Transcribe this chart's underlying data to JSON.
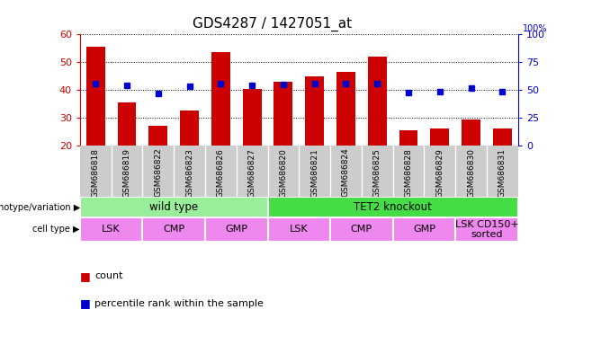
{
  "title": "GDS4287 / 1427051_at",
  "samples": [
    "GSM686818",
    "GSM686819",
    "GSM686822",
    "GSM686823",
    "GSM686826",
    "GSM686827",
    "GSM686820",
    "GSM686821",
    "GSM686824",
    "GSM686825",
    "GSM686828",
    "GSM686829",
    "GSM686830",
    "GSM686831"
  ],
  "counts": [
    55.5,
    35.5,
    27.0,
    32.5,
    53.5,
    40.5,
    43.0,
    45.0,
    46.5,
    52.0,
    25.5,
    26.0,
    29.5,
    26.0
  ],
  "percentile_ranks": [
    56.0,
    54.5,
    47.0,
    53.0,
    56.0,
    54.5,
    55.0,
    55.5,
    55.5,
    56.0,
    48.0,
    48.5,
    51.5,
    48.5
  ],
  "ylim_left": [
    20,
    60
  ],
  "ylim_right": [
    0,
    100
  ],
  "yticks_left": [
    20,
    30,
    40,
    50,
    60
  ],
  "yticks_right": [
    0,
    25,
    50,
    75,
    100
  ],
  "bar_color": "#cc0000",
  "dot_color": "#0000cc",
  "bar_bottom": 20,
  "genotype_groups": [
    {
      "label": "wild type",
      "start": 0,
      "end": 6,
      "color": "#99ee99"
    },
    {
      "label": "TET2 knockout",
      "start": 6,
      "end": 14,
      "color": "#44dd44"
    }
  ],
  "cell_type_groups": [
    {
      "label": "LSK",
      "start": 0,
      "end": 2
    },
    {
      "label": "CMP",
      "start": 2,
      "end": 4
    },
    {
      "label": "GMP",
      "start": 4,
      "end": 6
    },
    {
      "label": "LSK",
      "start": 6,
      "end": 8
    },
    {
      "label": "CMP",
      "start": 8,
      "end": 10
    },
    {
      "label": "GMP",
      "start": 10,
      "end": 12
    },
    {
      "label": "LSK CD150+\nsorted",
      "start": 12,
      "end": 14
    }
  ],
  "cell_type_color": "#ee88ee",
  "legend_count_color": "#cc0000",
  "legend_percentile_color": "#0000cc",
  "left_tick_color": "#cc0000",
  "right_tick_color": "#0000cc",
  "background_color": "#ffffff",
  "xticklabel_bg": "#cccccc",
  "plot_bg": "#ffffff"
}
